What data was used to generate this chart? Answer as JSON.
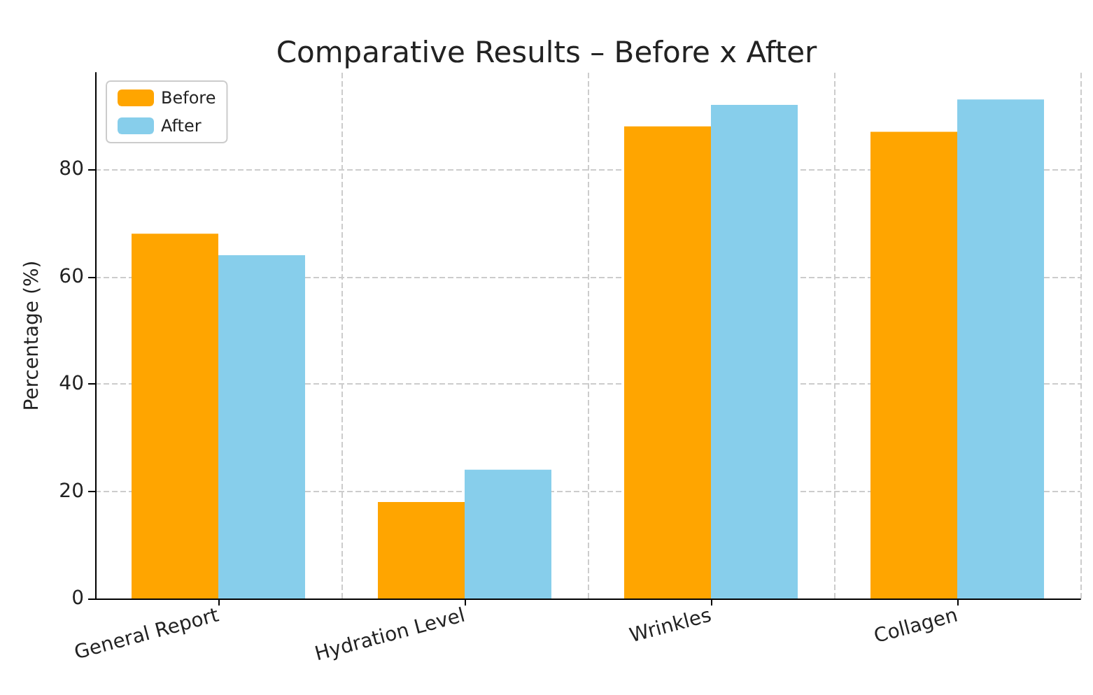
{
  "chart_data": {
    "type": "bar",
    "title": "Comparative Results – Before x After",
    "ylabel": "Percentage (%)",
    "categories": [
      "General Report",
      "Hydration Level",
      "Wrinkles",
      "Collagen"
    ],
    "series": [
      {
        "name": "Before",
        "color": "#ffa500",
        "values": [
          68,
          18,
          88,
          87
        ]
      },
      {
        "name": "After",
        "color": "#87ceeb",
        "values": [
          64,
          24,
          92,
          93
        ]
      }
    ],
    "ylim": [
      0,
      98
    ],
    "yticks": [
      0,
      20,
      40,
      60,
      80
    ],
    "grid": true,
    "legend": "top left"
  }
}
